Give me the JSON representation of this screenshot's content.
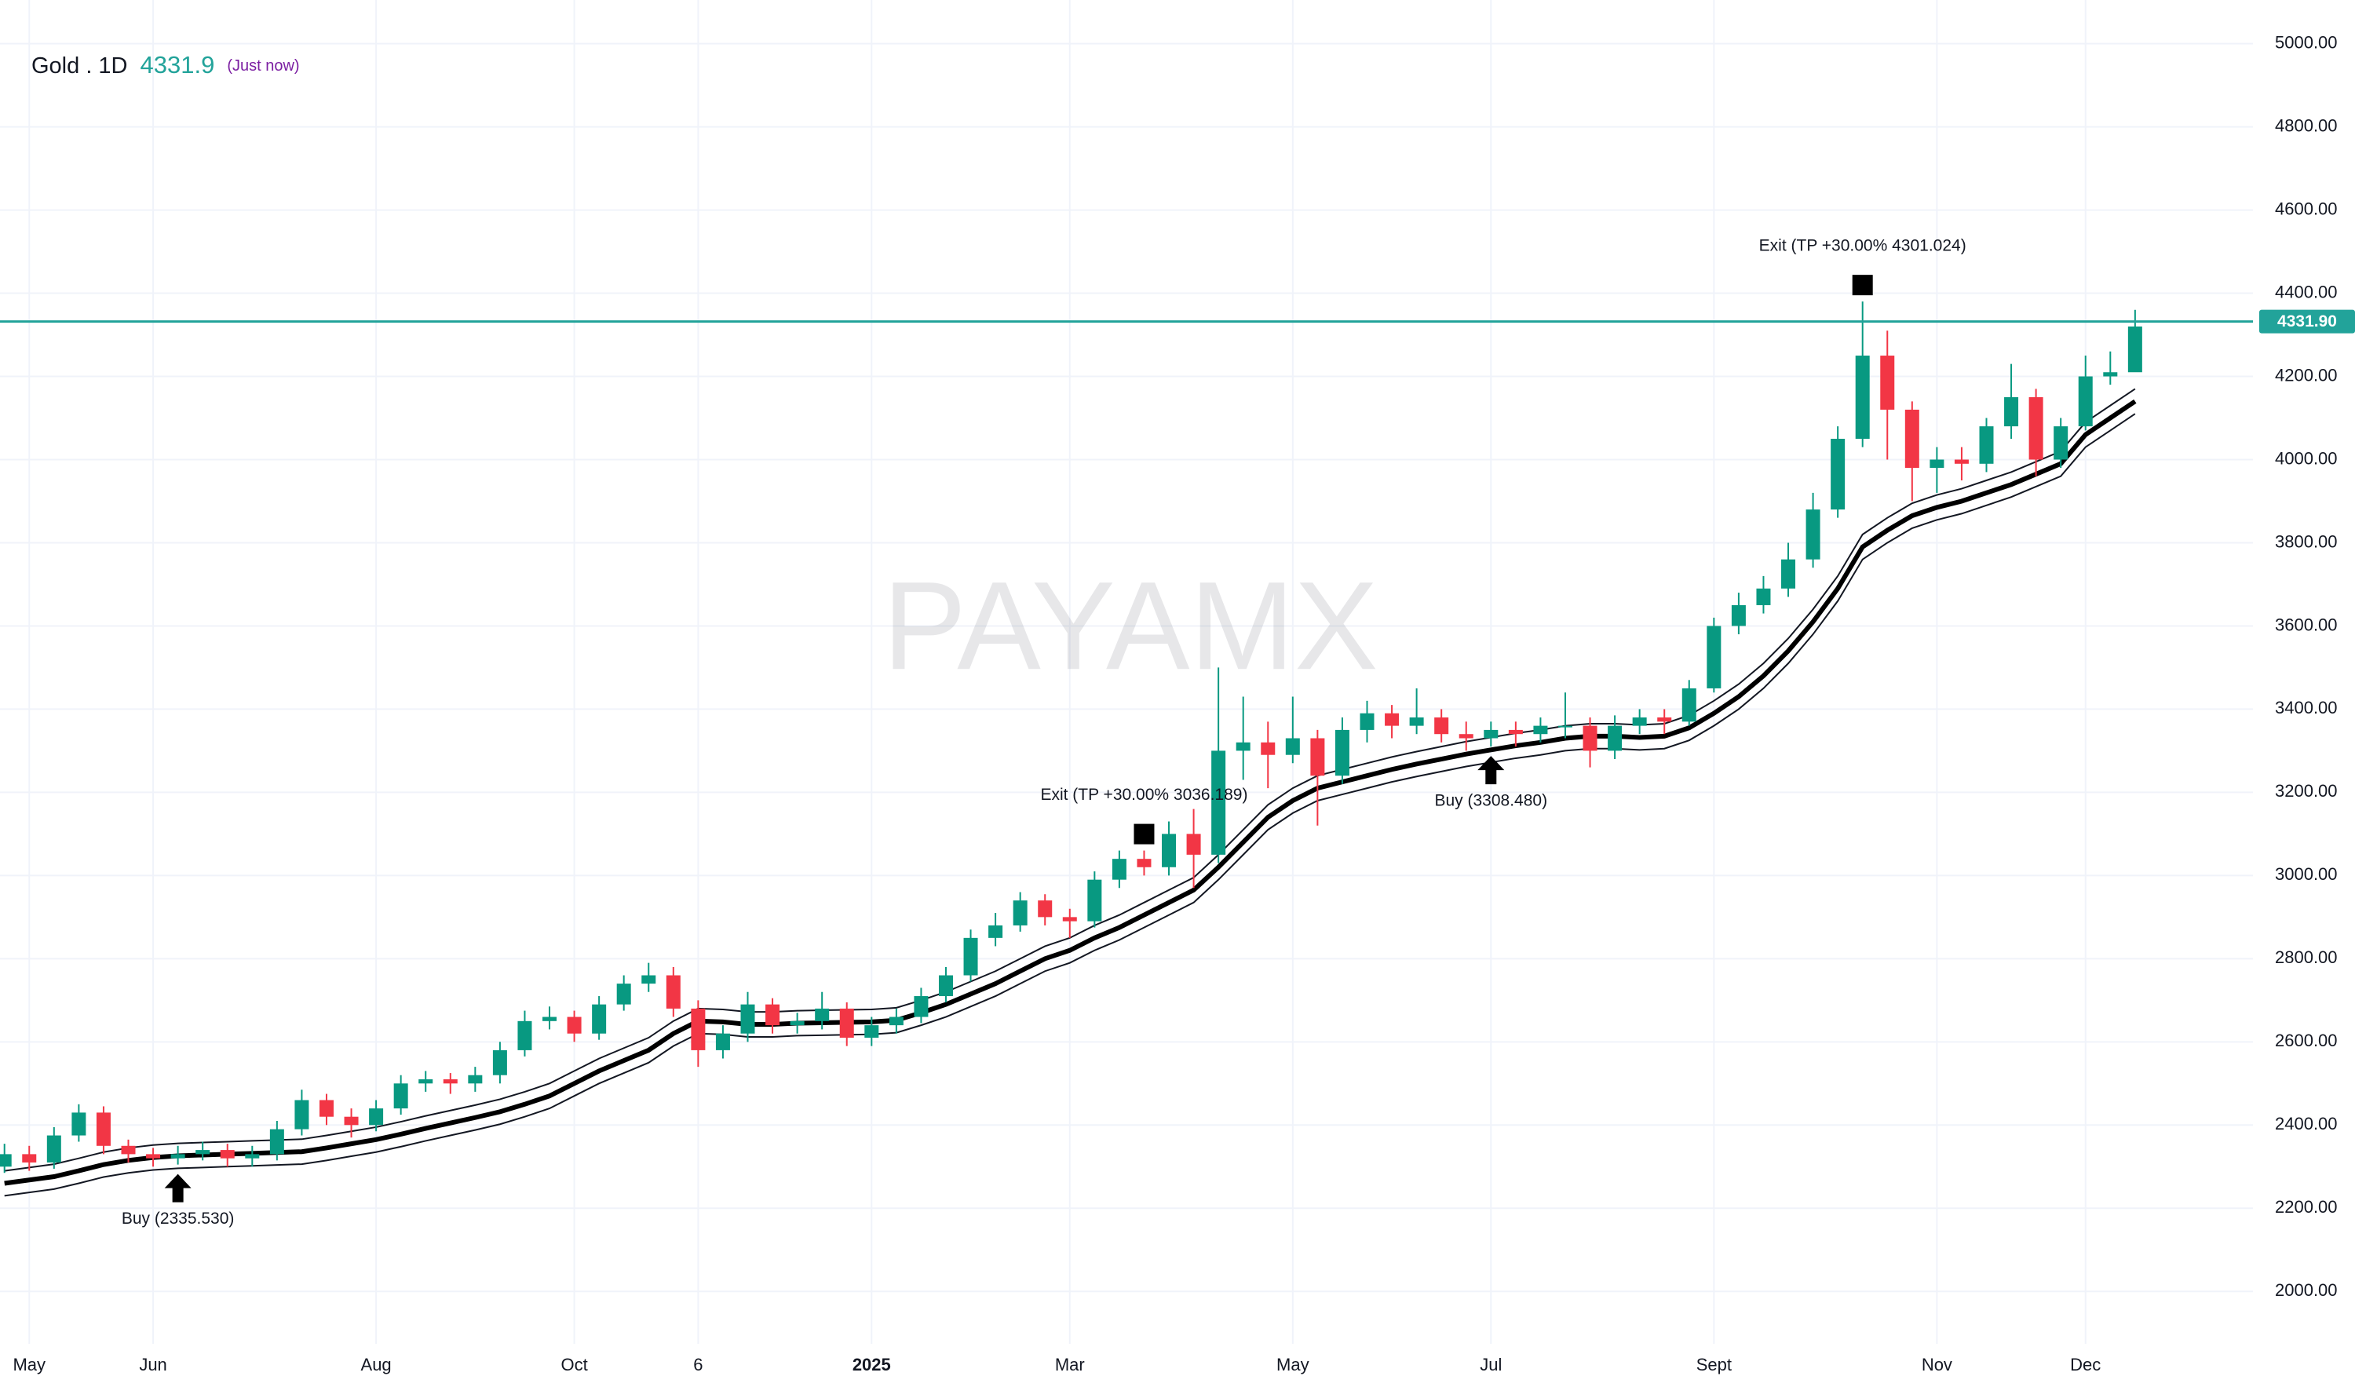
{
  "chart_data": {
    "type": "candlestick",
    "header": {
      "symbol": "Gold . 1D",
      "status": "(Just now)"
    },
    "watermark": "PAYAMX",
    "categories": [
      null,
      "May",
      null,
      null,
      null,
      null,
      "Jun",
      null,
      null,
      null,
      null,
      null,
      null,
      null,
      null,
      "Aug",
      null,
      null,
      null,
      null,
      null,
      null,
      null,
      "Oct",
      null,
      null,
      null,
      null,
      "6",
      null,
      null,
      null,
      null,
      null,
      null,
      "2025",
      null,
      null,
      null,
      null,
      null,
      null,
      null,
      "Mar",
      null,
      null,
      null,
      null,
      null,
      null,
      null,
      null,
      "May",
      null,
      null,
      null,
      null,
      null,
      null,
      null,
      "Jul",
      null,
      null,
      null,
      null,
      null,
      null,
      null,
      null,
      "Sept",
      null,
      null,
      null,
      null,
      null,
      null,
      null,
      null,
      "Nov",
      null,
      null,
      null,
      null,
      null,
      "Dec",
      null,
      null
    ],
    "ohlc": {
      "open": [
        2300,
        2330,
        2310,
        2375,
        2430,
        2350,
        2330,
        2320,
        2330,
        2340,
        2320,
        2330,
        2390,
        2460,
        2420,
        2400,
        2440,
        2500,
        2510,
        2500,
        2520,
        2580,
        2650,
        2660,
        2620,
        2690,
        2740,
        2760,
        2680,
        2580,
        2620,
        2690,
        2640,
        2650,
        2680,
        2610,
        2640,
        2660,
        2710,
        2760,
        2850,
        2880,
        2940,
        2900,
        2890,
        2990,
        3040,
        3020,
        3100,
        3050,
        3300,
        3320,
        3290,
        3330,
        3240,
        3350,
        3390,
        3360,
        3380,
        3340,
        3330,
        3350,
        3340,
        3360,
        3360,
        3300,
        3360,
        3380,
        3370,
        3450,
        3600,
        3650,
        3690,
        3760,
        3880,
        4050,
        4250,
        4120,
        3980,
        4000,
        3990,
        4080,
        4150,
        4000,
        4080,
        4200,
        4210
      ],
      "high": [
        2355,
        2350,
        2395,
        2450,
        2445,
        2365,
        2345,
        2350,
        2360,
        2355,
        2350,
        2410,
        2485,
        2475,
        2440,
        2460,
        2520,
        2530,
        2525,
        2540,
        2600,
        2675,
        2685,
        2675,
        2710,
        2760,
        2790,
        2780,
        2700,
        2640,
        2720,
        2705,
        2670,
        2720,
        2695,
        2660,
        2680,
        2730,
        2780,
        2870,
        2910,
        2960,
        2955,
        2920,
        3010,
        3060,
        3060,
        3130,
        3160,
        3500,
        3430,
        3370,
        3430,
        3350,
        3380,
        3420,
        3410,
        3450,
        3400,
        3370,
        3370,
        3370,
        3380,
        3440,
        3380,
        3385,
        3400,
        3400,
        3470,
        3620,
        3680,
        3720,
        3800,
        3920,
        4080,
        4380,
        4310,
        4140,
        4030,
        4030,
        4100,
        4230,
        4170,
        4100,
        4250,
        4260,
        4360
      ],
      "low": [
        2285,
        2290,
        2295,
        2360,
        2330,
        2310,
        2300,
        2305,
        2315,
        2300,
        2300,
        2315,
        2375,
        2400,
        2370,
        2385,
        2425,
        2480,
        2475,
        2480,
        2500,
        2565,
        2630,
        2600,
        2605,
        2675,
        2720,
        2660,
        2540,
        2560,
        2600,
        2620,
        2620,
        2630,
        2590,
        2590,
        2620,
        2645,
        2695,
        2745,
        2830,
        2865,
        2880,
        2850,
        2875,
        2970,
        3000,
        3000,
        2970,
        3030,
        3230,
        3210,
        3270,
        3120,
        3220,
        3320,
        3330,
        3340,
        3320,
        3300,
        3310,
        3310,
        3320,
        3330,
        3260,
        3280,
        3340,
        3340,
        3360,
        3440,
        3580,
        3630,
        3670,
        3740,
        3860,
        4030,
        4000,
        3900,
        3920,
        3950,
        3970,
        4050,
        3960,
        3980,
        4070,
        4180,
        4280
      ],
      "close": [
        2330,
        2310,
        2375,
        2430,
        2350,
        2330,
        2320,
        2330,
        2340,
        2320,
        2330,
        2390,
        2460,
        2420,
        2400,
        2440,
        2500,
        2510,
        2500,
        2520,
        2580,
        2650,
        2660,
        2620,
        2690,
        2740,
        2760,
        2680,
        2580,
        2620,
        2690,
        2640,
        2650,
        2680,
        2610,
        2640,
        2660,
        2710,
        2760,
        2850,
        2880,
        2940,
        2900,
        2890,
        2990,
        3040,
        3020,
        3100,
        3050,
        3300,
        3320,
        3290,
        3330,
        3240,
        3350,
        3390,
        3360,
        3380,
        3340,
        3330,
        3350,
        3340,
        3360,
        3360,
        3300,
        3360,
        3380,
        3370,
        3450,
        3600,
        3650,
        3690,
        3760,
        3880,
        4050,
        4250,
        4120,
        3980,
        4000,
        3990,
        4080,
        4150,
        4000,
        4080,
        4200,
        4210,
        4320
      ]
    },
    "up_color": "#089981",
    "down_color": "#f23645",
    "bands": [
      {
        "color": "#131722",
        "values": [
          2290,
          2298,
          2306,
          2320,
          2335,
          2345,
          2352,
          2356,
          2358,
          2360,
          2362,
          2364,
          2366,
          2375,
          2385,
          2395,
          2408,
          2422,
          2435,
          2448,
          2462,
          2480,
          2500,
          2530,
          2560,
          2585,
          2610,
          2650,
          2680,
          2678,
          2672,
          2672,
          2675,
          2676,
          2677,
          2678,
          2682,
          2700,
          2720,
          2745,
          2770,
          2800,
          2830,
          2850,
          2880,
          2905,
          2935,
          2965,
          2995,
          3050,
          3110,
          3170,
          3210,
          3240,
          3255,
          3270,
          3285,
          3298,
          3310,
          3322,
          3332,
          3342,
          3350,
          3360,
          3365,
          3365,
          3362,
          3365,
          3385,
          3420,
          3460,
          3510,
          3570,
          3640,
          3720,
          3820,
          3860,
          3895,
          3915,
          3930,
          3950,
          3970,
          3995,
          4020,
          4090,
          4130,
          4170
        ]
      },
      {
        "color": "#000000",
        "values": [
          2260,
          2268,
          2276,
          2290,
          2305,
          2315,
          2322,
          2326,
          2328,
          2330,
          2332,
          2334,
          2336,
          2345,
          2355,
          2365,
          2378,
          2392,
          2405,
          2418,
          2432,
          2450,
          2470,
          2500,
          2530,
          2555,
          2580,
          2620,
          2650,
          2648,
          2642,
          2642,
          2645,
          2646,
          2647,
          2648,
          2652,
          2670,
          2690,
          2715,
          2740,
          2770,
          2800,
          2820,
          2850,
          2875,
          2905,
          2935,
          2965,
          3020,
          3080,
          3140,
          3180,
          3210,
          3225,
          3240,
          3255,
          3268,
          3280,
          3292,
          3302,
          3312,
          3320,
          3330,
          3335,
          3335,
          3332,
          3335,
          3355,
          3390,
          3430,
          3480,
          3540,
          3610,
          3690,
          3790,
          3830,
          3865,
          3885,
          3900,
          3920,
          3940,
          3965,
          3990,
          4060,
          4100,
          4140
        ]
      },
      {
        "color": "#131722",
        "values": [
          2230,
          2238,
          2246,
          2260,
          2275,
          2285,
          2292,
          2296,
          2298,
          2300,
          2302,
          2304,
          2306,
          2315,
          2325,
          2335,
          2348,
          2362,
          2375,
          2388,
          2402,
          2420,
          2440,
          2470,
          2500,
          2525,
          2550,
          2590,
          2620,
          2618,
          2612,
          2612,
          2615,
          2616,
          2617,
          2618,
          2622,
          2640,
          2660,
          2685,
          2710,
          2740,
          2770,
          2790,
          2820,
          2845,
          2875,
          2905,
          2935,
          2990,
          3050,
          3110,
          3150,
          3180,
          3195,
          3210,
          3225,
          3238,
          3250,
          3262,
          3272,
          3282,
          3290,
          3300,
          3305,
          3305,
          3302,
          3305,
          3325,
          3360,
          3400,
          3450,
          3510,
          3580,
          3660,
          3760,
          3800,
          3835,
          3855,
          3870,
          3890,
          3910,
          3935,
          3960,
          4030,
          4070,
          4110
        ]
      }
    ],
    "price_line": {
      "value": 4331.9,
      "label": "4331.90",
      "color": "#22a39a"
    },
    "annotations": [
      {
        "text": "Buy (2335.530)",
        "kind": "buy"
      },
      {
        "text": "Exit (TP +30.00% 3036.189)",
        "kind": "exit"
      },
      {
        "text": "Buy (3308.480)",
        "kind": "buy"
      },
      {
        "text": "Exit (TP +30.00% 4301.024)",
        "kind": "exit"
      }
    ],
    "ylim": [
      1874,
      5105
    ],
    "yticks": [
      {
        "value": 2000,
        "label": "2000.00"
      },
      {
        "value": 2200,
        "label": "2200.00"
      },
      {
        "value": 2400,
        "label": "2400.00"
      },
      {
        "value": 2600,
        "label": "2600.00"
      },
      {
        "value": 2800,
        "label": "2800.00"
      },
      {
        "value": 3000,
        "label": "3000.00"
      },
      {
        "value": 3200,
        "label": "3200.00"
      },
      {
        "value": 3400,
        "label": "3400.00"
      },
      {
        "value": 3600,
        "label": "3600.00"
      },
      {
        "value": 3800,
        "label": "3800.00"
      },
      {
        "value": 4000,
        "label": "4000.00"
      },
      {
        "value": 4200,
        "label": "4200.00"
      },
      {
        "value": 4400,
        "label": "4400.00"
      },
      {
        "value": 4600,
        "label": "4600.00"
      },
      {
        "value": 4800,
        "label": "4800.00"
      },
      {
        "value": 5000,
        "label": "5000.00"
      }
    ],
    "grid": true
  }
}
